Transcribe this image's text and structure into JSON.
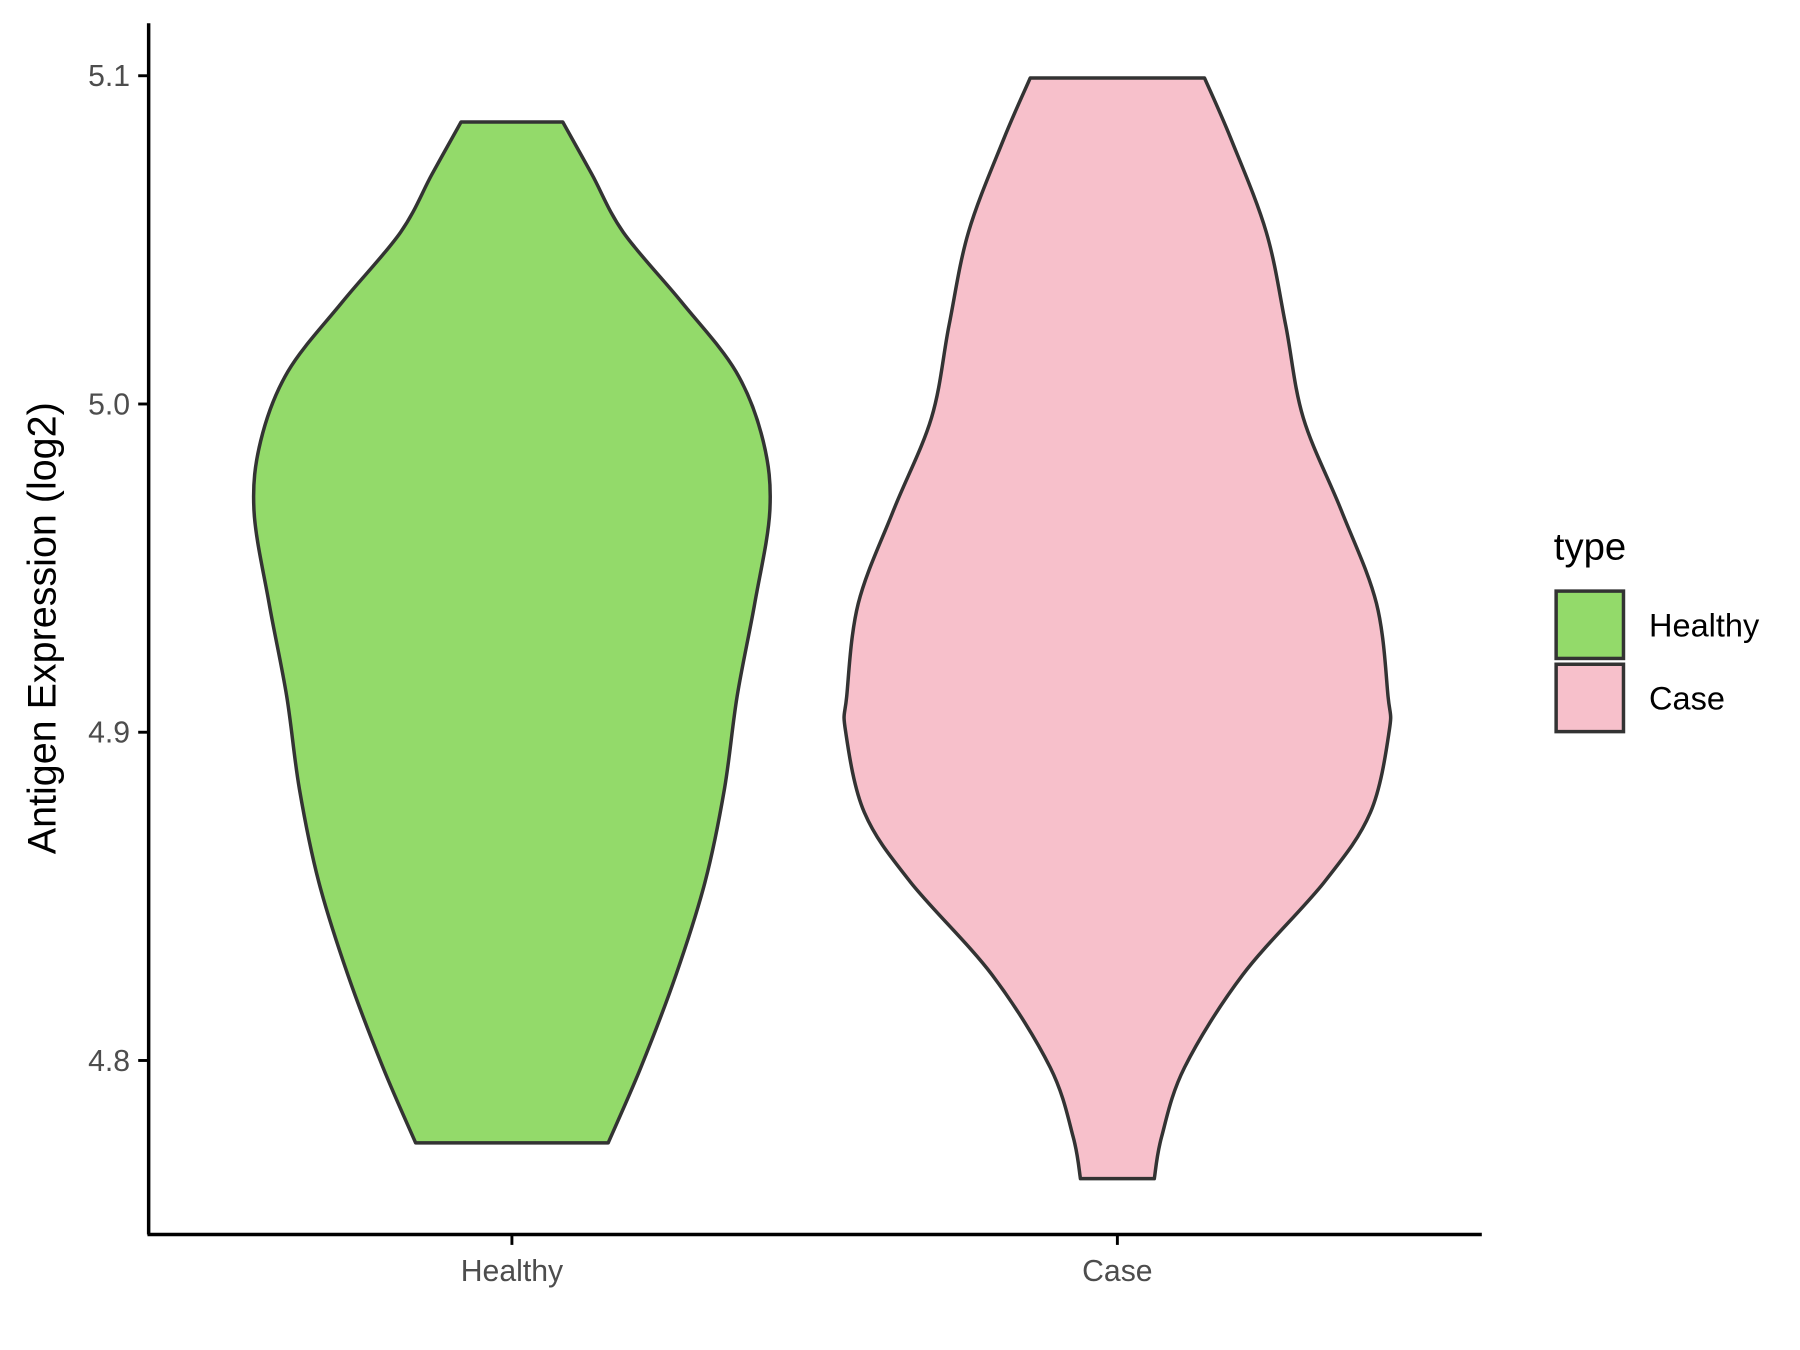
{
  "chart_data": {
    "type": "violin",
    "y_label": "Antigen Expression (log2)",
    "legend_title": "type",
    "categories": [
      "Healthy",
      "Case"
    ],
    "xlim": [
      0.4,
      2.6
    ],
    "ylim": [
      4.747,
      5.116
    ],
    "yticks": [
      4.8,
      4.9,
      {
        "value": 5,
        "label": "5.0"
      },
      5.1
    ],
    "series": [
      {
        "name": "Healthy",
        "color": "#93DA6A",
        "y": [
          5.0859,
          5.07,
          5.0523,
          5.0311,
          5.0099,
          4.9887,
          4.9675,
          4.9392,
          4.911,
          4.8827,
          4.8544,
          4.8261,
          4.7979,
          4.7749
        ],
        "half_width": [
          0.084,
          0.132,
          0.184,
          0.28,
          0.37,
          0.415,
          0.426,
          0.401,
          0.372,
          0.351,
          0.319,
          0.271,
          0.213,
          0.159
        ]
      },
      {
        "name": "Case",
        "color": "#F7C0CB",
        "y": [
          5.0993,
          5.0806,
          5.0523,
          5.024,
          4.9958,
          4.9675,
          4.9392,
          4.911,
          4.9004,
          4.8756,
          4.8544,
          4.8261,
          4.7979,
          4.7767,
          4.764
        ],
        "half_width": [
          0.144,
          0.188,
          0.246,
          0.278,
          0.307,
          0.37,
          0.428,
          0.447,
          0.449,
          0.418,
          0.342,
          0.207,
          0.111,
          0.073,
          0.061
        ]
      }
    ]
  }
}
